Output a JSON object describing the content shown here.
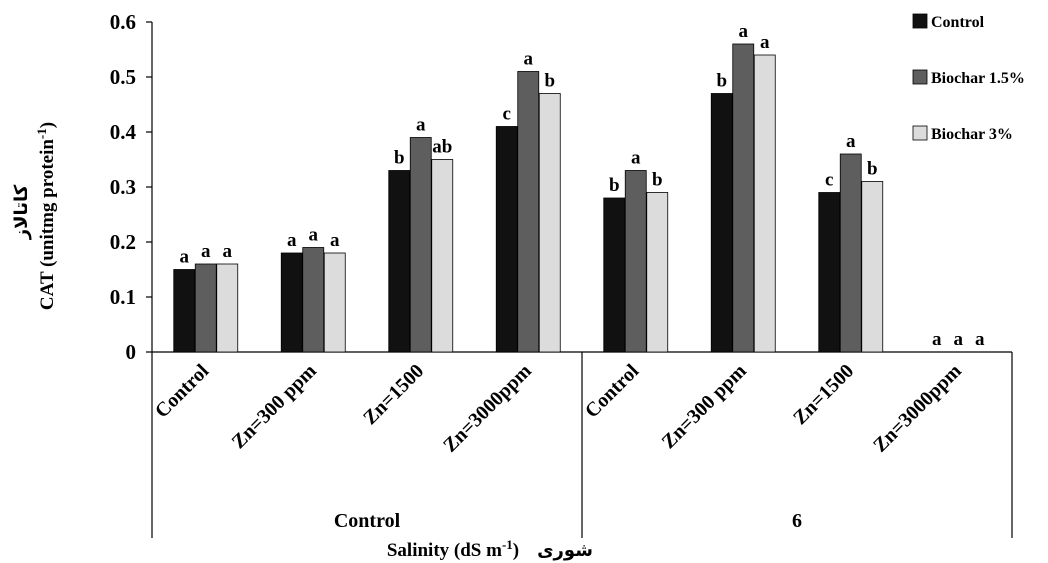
{
  "chart_data": {
    "type": "bar",
    "ylim": [
      0,
      0.6
    ],
    "yticks": [
      "0",
      "0.1",
      "0.2",
      "0.3",
      "0.4",
      "0.5",
      "0.6"
    ],
    "categories": [
      "Control",
      "Zn=300 ppm",
      "Zn=1500",
      "Zn=3000ppm",
      "Control",
      "Zn=300 ppm",
      "Zn=1500",
      "Zn=3000ppm"
    ],
    "groups": [
      "Control",
      "6"
    ],
    "series": [
      {
        "name": "Control",
        "color": "#111111",
        "values": [
          0.15,
          0.18,
          0.33,
          0.41,
          0.28,
          0.47,
          0.29,
          0
        ],
        "letters": [
          "a",
          "a",
          "b",
          "c",
          "b",
          "b",
          "c",
          "a"
        ]
      },
      {
        "name": "Biochar 1.5%",
        "color": "#5e5e5e",
        "values": [
          0.16,
          0.19,
          0.39,
          0.51,
          0.33,
          0.56,
          0.36,
          0
        ],
        "letters": [
          "a",
          "a",
          "a",
          "a",
          "a",
          "a",
          "a",
          "a"
        ]
      },
      {
        "name": "Biochar 3%",
        "color": "#dcdcdc",
        "values": [
          0.16,
          0.18,
          0.35,
          0.47,
          0.29,
          0.54,
          0.31,
          0
        ],
        "letters": [
          "a",
          "a",
          "ab",
          "b",
          "b",
          "a",
          "b",
          "a"
        ]
      }
    ],
    "ylabel_fa": "کاتالاز",
    "ylabel": "CAT (unitmg protein-1)",
    "xlabel": "Salinity (dS m-1)",
    "xlabel_fa": "شوری"
  }
}
